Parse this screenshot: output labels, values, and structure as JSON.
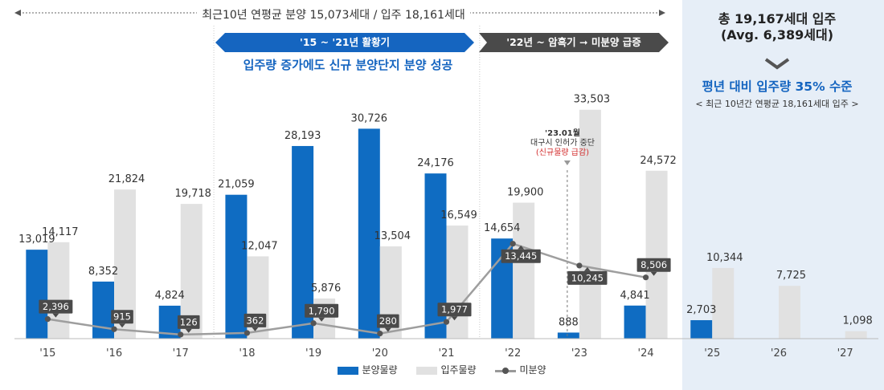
{
  "header": {
    "top_text": "최근10년 연평균 분양 15,073세대 / 입주 18,161세대",
    "banner1": "'15 ~ '21년 활황기",
    "banner2_pre": "'22년 ~  암흑기",
    "banner2_arrow": "➞",
    "banner2_post": "미분양 급증",
    "subtitle": "입주량 증가에도 신규 분양단지 분양 성공"
  },
  "summary": {
    "line1": "총 19,167세대 입주",
    "line2": "(Avg. 6,389세대)",
    "avg_text": "평년 대비 입주량 35% 수준",
    "avg_sub": "< 최근 10년간 연평균 18,161세대 입주 >"
  },
  "note": {
    "title": "'23.01월",
    "line1": "대구시 인허가 중단",
    "line2": "(신규물량 급감)"
  },
  "colors": {
    "supply": "#0f6cc2",
    "move_in": "#e1e1e1",
    "unsold_line": "#9e9e9e",
    "unsold_label_bg": "#4a4a4a",
    "banner_blue": "#1565c0",
    "banner_dark": "#4a4a4a",
    "forecast_bg": "#e6eef7"
  },
  "chart_data": {
    "type": "bar",
    "categories": [
      "'15",
      "'16",
      "'17",
      "'18",
      "'19",
      "'20",
      "'21",
      "'22",
      "'23",
      "'24",
      "'25",
      "'26",
      "'27"
    ],
    "series": [
      {
        "name": "분양물량",
        "type": "bar",
        "values": [
          13019,
          8352,
          4824,
          21059,
          28193,
          30726,
          24176,
          14654,
          888,
          4841,
          2703,
          null,
          null
        ]
      },
      {
        "name": "입주물량",
        "type": "bar",
        "values": [
          14117,
          21824,
          19718,
          12047,
          5876,
          13504,
          16549,
          19900,
          33503,
          24572,
          10344,
          7725,
          1098
        ]
      },
      {
        "name": "미분양",
        "type": "line",
        "values": [
          2396,
          915,
          126,
          362,
          1790,
          280,
          1977,
          13445,
          10245,
          8506,
          null,
          null,
          null
        ]
      }
    ],
    "ylim": [
      0,
      35000
    ],
    "grid": false,
    "legend": "bottom-center"
  }
}
